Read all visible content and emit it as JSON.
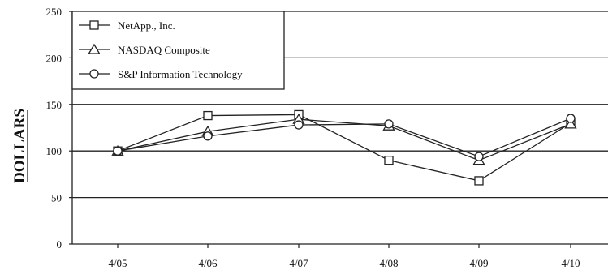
{
  "chart_data": {
    "type": "line",
    "categories": [
      "4/05",
      "4/06",
      "4/07",
      "4/08",
      "4/09",
      "4/10"
    ],
    "ylabel": "DOLLARS",
    "ylim": [
      0,
      250
    ],
    "yticks": [
      0,
      50,
      100,
      150,
      200,
      250
    ],
    "grid": true,
    "legend": "top-left",
    "series": [
      {
        "name": "NetApp., Inc.",
        "marker": "square",
        "values": [
          100,
          138,
          139,
          90,
          68,
          130
        ]
      },
      {
        "name": "NASDAQ Composite",
        "marker": "triangle",
        "values": [
          100,
          121,
          134,
          127,
          90,
          129
        ]
      },
      {
        "name": "S&P Information Technology",
        "marker": "circle",
        "values": [
          100,
          116,
          128,
          129,
          94,
          135
        ]
      }
    ],
    "colors": {
      "line": "#222222",
      "grid": "#222222",
      "background": "#ffffff"
    }
  }
}
